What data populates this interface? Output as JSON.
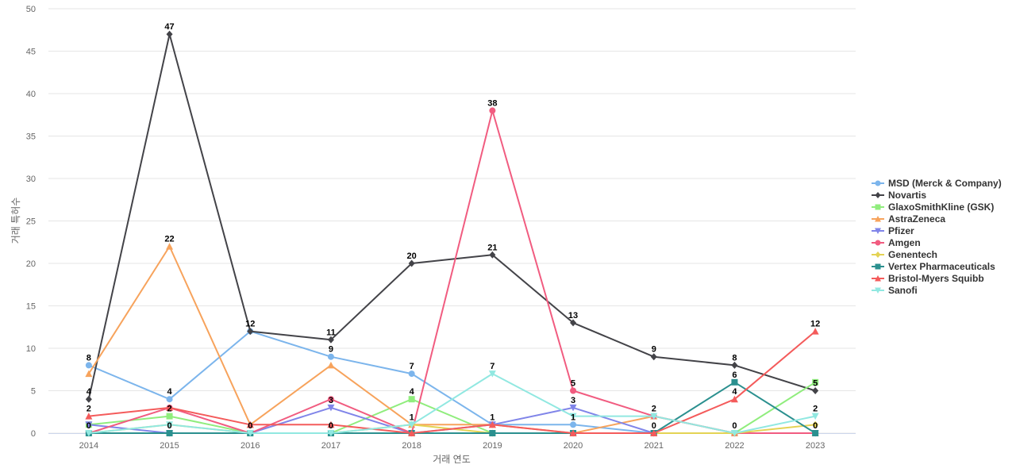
{
  "chart_data": {
    "type": "line",
    "xlabel": "거래 연도",
    "ylabel": "거래 특허수",
    "ylim": [
      0,
      50
    ],
    "yticks": [
      0,
      5,
      10,
      15,
      20,
      25,
      30,
      35,
      40,
      45,
      50
    ],
    "grid": true,
    "legend_position": "right",
    "categories": [
      "2014",
      "2015",
      "2016",
      "2017",
      "2018",
      "2019",
      "2020",
      "2021",
      "2022",
      "2023"
    ],
    "series": [
      {
        "name": "MSD (Merck & Company)",
        "color": "#7cb5ec",
        "marker": "circle",
        "values": [
          8,
          4,
          12,
          9,
          7,
          1,
          1,
          0,
          0,
          0
        ]
      },
      {
        "name": "Novartis",
        "color": "#434348",
        "marker": "diamond",
        "values": [
          4,
          47,
          12,
          11,
          20,
          21,
          13,
          9,
          8,
          5
        ]
      },
      {
        "name": "GlaxoSmithKline (GSK)",
        "color": "#90ed7d",
        "marker": "square",
        "values": [
          1,
          2,
          0,
          0,
          4,
          0,
          0,
          0,
          0,
          6
        ]
      },
      {
        "name": "AstraZeneca",
        "color": "#f7a35c",
        "marker": "triangle",
        "values": [
          7,
          22,
          1,
          8,
          1,
          1,
          0,
          2,
          0,
          0
        ]
      },
      {
        "name": "Pfizer",
        "color": "#8085e9",
        "marker": "triangle-down",
        "values": [
          1,
          0,
          0,
          3,
          0,
          1,
          3,
          0,
          0,
          0
        ]
      },
      {
        "name": "Amgen",
        "color": "#f15c80",
        "marker": "circle",
        "values": [
          0,
          3,
          0,
          4,
          0,
          38,
          5,
          2,
          0,
          0
        ]
      },
      {
        "name": "Genentech",
        "color": "#e4d354",
        "marker": "diamond",
        "values": [
          0,
          1,
          0,
          0,
          1,
          0,
          0,
          0,
          0,
          1
        ]
      },
      {
        "name": "Vertex Pharmaceuticals",
        "color": "#2b908f",
        "marker": "square",
        "values": [
          0,
          0,
          0,
          0,
          0,
          0,
          0,
          0,
          6,
          0
        ]
      },
      {
        "name": "Bristol-Myers Squibb",
        "color": "#f45b5b",
        "marker": "triangle",
        "values": [
          2,
          3,
          1,
          1,
          0,
          1,
          0,
          0,
          4,
          12
        ]
      },
      {
        "name": "Sanofi",
        "color": "#91e8e1",
        "marker": "triangle-down",
        "values": [
          0,
          1,
          0,
          0,
          1,
          7,
          2,
          2,
          0,
          2
        ]
      }
    ],
    "data_labels": [
      {
        "category": "2014",
        "values": [
          8,
          4,
          2,
          0
        ]
      },
      {
        "category": "2015",
        "values": [
          47,
          22,
          4,
          2,
          0
        ]
      },
      {
        "category": "2016",
        "values": [
          12,
          0
        ]
      },
      {
        "category": "2017",
        "values": [
          11,
          9,
          3,
          0
        ]
      },
      {
        "category": "2018",
        "values": [
          20,
          7,
          4,
          1
        ]
      },
      {
        "category": "2019",
        "values": [
          38,
          21,
          7,
          1
        ]
      },
      {
        "category": "2020",
        "values": [
          13,
          5,
          3,
          1
        ]
      },
      {
        "category": "2021",
        "values": [
          9,
          2,
          0
        ]
      },
      {
        "category": "2022",
        "values": [
          8,
          6,
          4,
          0
        ]
      },
      {
        "category": "2023",
        "values": [
          12,
          5,
          2,
          0
        ]
      }
    ]
  }
}
